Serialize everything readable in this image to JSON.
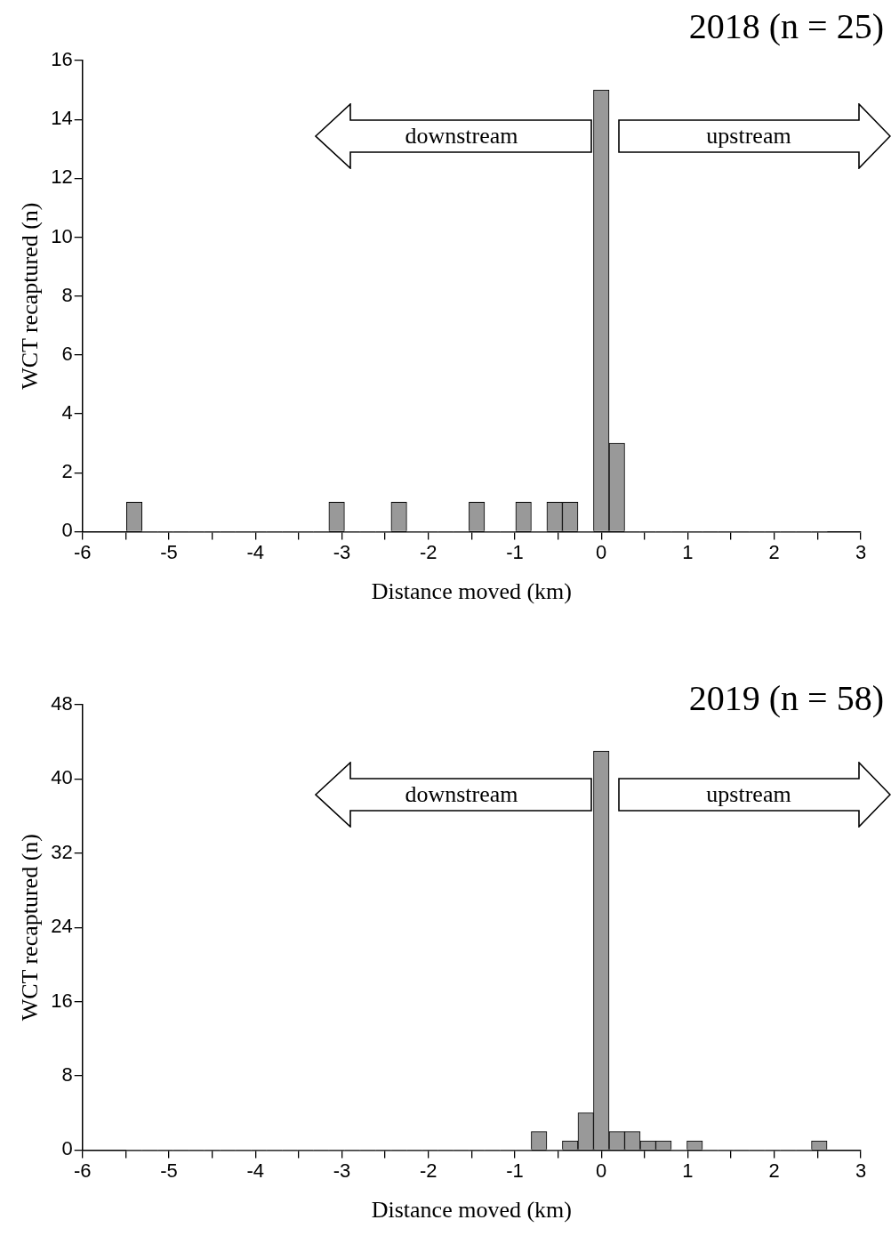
{
  "chart_data": [
    {
      "type": "histogram",
      "title": "2018 (n = 25)",
      "xlabel": "Distance moved (km)",
      "ylabel": "WCT recaptured (n)",
      "color": "#999999",
      "bins": [
        -5.49,
        -5.31,
        -5.13,
        -4.95,
        -4.77,
        -4.59,
        -4.41,
        -4.23,
        -4.05,
        -3.87,
        -3.69,
        -3.51,
        -3.33,
        -3.15,
        -2.97,
        -2.79,
        -2.61,
        -2.43,
        -2.25,
        -2.07,
        -1.89,
        -1.71,
        -1.53,
        -1.35,
        -1.17,
        -0.99,
        -0.81,
        -0.63,
        -0.45,
        -0.27,
        -0.09,
        0.09,
        0.27,
        0.45,
        0.63,
        0.81,
        0.99,
        1.17,
        1.35,
        1.53,
        1.71,
        1.89,
        2.07,
        2.25,
        2.43,
        2.61
      ],
      "values": [
        1,
        0,
        0,
        0,
        0,
        0,
        0,
        0,
        0,
        0,
        0,
        0,
        0,
        1,
        0,
        0,
        0,
        1,
        0,
        0,
        0,
        0,
        1,
        0,
        0,
        1,
        0,
        1,
        1,
        0,
        15,
        3,
        0,
        0,
        0,
        0,
        0,
        0,
        0,
        0,
        0,
        0,
        0,
        0,
        0
      ],
      "xlim": [
        -6,
        3
      ],
      "xticks": [
        -6,
        {
          "value": -5.5,
          "label": null
        },
        -5,
        {
          "value": -4.5,
          "label": null
        },
        -4,
        {
          "value": -3.5,
          "label": null
        },
        -3,
        {
          "value": -2.5,
          "label": null
        },
        -2,
        {
          "value": -1.5,
          "label": null
        },
        -1,
        {
          "value": -0.5,
          "label": null
        },
        0,
        {
          "value": 0.5,
          "label": null
        },
        1,
        {
          "value": 1.5,
          "label": null
        },
        2,
        {
          "value": 2.5,
          "label": null
        },
        3
      ],
      "ylim": [
        0,
        16
      ],
      "yticks": [
        0,
        2,
        4,
        6,
        8,
        10,
        12,
        14,
        16
      ],
      "annotations": [
        "downstream",
        "upstream"
      ]
    },
    {
      "type": "histogram",
      "title": "2019 (n = 58)",
      "xlabel": "Distance moved (km)",
      "ylabel": "WCT recaptured (n)",
      "color": "#999999",
      "bins": [
        -5.49,
        -5.31,
        -5.13,
        -4.95,
        -4.77,
        -4.59,
        -4.41,
        -4.23,
        -4.05,
        -3.87,
        -3.69,
        -3.51,
        -3.33,
        -3.15,
        -2.97,
        -2.79,
        -2.61,
        -2.43,
        -2.25,
        -2.07,
        -1.89,
        -1.71,
        -1.53,
        -1.35,
        -1.17,
        -0.99,
        -0.81,
        -0.63,
        -0.45,
        -0.27,
        -0.09,
        0.09,
        0.27,
        0.45,
        0.63,
        0.81,
        0.99,
        1.17,
        1.35,
        1.53,
        1.71,
        1.89,
        2.07,
        2.25,
        2.43,
        2.61
      ],
      "values": [
        0,
        0,
        0,
        0,
        0,
        0,
        0,
        0,
        0,
        0,
        0,
        0,
        0,
        0,
        0,
        0,
        0,
        0,
        0,
        0,
        0,
        0,
        0,
        0,
        0,
        0,
        2,
        0,
        1,
        4,
        43,
        2,
        2,
        1,
        1,
        0,
        1,
        0,
        0,
        0,
        0,
        0,
        0,
        0,
        1
      ],
      "xlim": [
        -6,
        3
      ],
      "xticks": [
        -6,
        {
          "value": -5.5,
          "label": null
        },
        -5,
        {
          "value": -4.5,
          "label": null
        },
        -4,
        {
          "value": -3.5,
          "label": null
        },
        -3,
        {
          "value": -2.5,
          "label": null
        },
        -2,
        {
          "value": -1.5,
          "label": null
        },
        -1,
        {
          "value": -0.5,
          "label": null
        },
        0,
        {
          "value": 0.5,
          "label": null
        },
        1,
        {
          "value": 1.5,
          "label": null
        },
        2,
        {
          "value": 2.5,
          "label": null
        },
        3
      ],
      "ylim": [
        0,
        48
      ],
      "yticks": [
        0,
        8,
        16,
        24,
        32,
        40,
        48
      ],
      "annotations": [
        "downstream",
        "upstream"
      ]
    }
  ]
}
